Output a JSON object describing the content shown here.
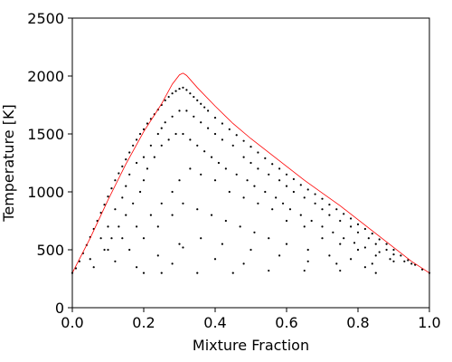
{
  "chart_data": {
    "type": "scatter",
    "xlabel": "Mixture Fraction",
    "ylabel": "Temperature [K]",
    "xlim": [
      0.0,
      1.0
    ],
    "ylim": [
      0,
      2500
    ],
    "x_ticks": [
      0.0,
      0.2,
      0.4,
      0.6,
      0.8,
      1.0
    ],
    "x_tick_labels": [
      "0.0",
      "0.2",
      "0.4",
      "0.6",
      "0.8",
      "1.0"
    ],
    "y_ticks": [
      0,
      500,
      1000,
      1500,
      2000,
      2500
    ],
    "y_tick_labels": [
      "0",
      "500",
      "1000",
      "1500",
      "2000",
      "2500"
    ],
    "grid": false,
    "series": [
      {
        "kind": "scatter",
        "color": "#000000",
        "points": [
          [
            0.0,
            300
          ],
          [
            0.01,
            340
          ],
          [
            0.02,
            400
          ],
          [
            0.03,
            470
          ],
          [
            0.04,
            540
          ],
          [
            0.05,
            610
          ],
          [
            0.06,
            680
          ],
          [
            0.07,
            750
          ],
          [
            0.08,
            820
          ],
          [
            0.09,
            890
          ],
          [
            0.1,
            960
          ],
          [
            0.11,
            1030
          ],
          [
            0.12,
            1100
          ],
          [
            0.13,
            1160
          ],
          [
            0.14,
            1220
          ],
          [
            0.15,
            1280
          ],
          [
            0.16,
            1340
          ],
          [
            0.17,
            1400
          ],
          [
            0.18,
            1450
          ],
          [
            0.19,
            1500
          ],
          [
            0.2,
            1540
          ],
          [
            0.21,
            1590
          ],
          [
            0.22,
            1630
          ],
          [
            0.23,
            1670
          ],
          [
            0.24,
            1710
          ],
          [
            0.25,
            1750
          ],
          [
            0.26,
            1790
          ],
          [
            0.27,
            1820
          ],
          [
            0.28,
            1850
          ],
          [
            0.29,
            1870
          ],
          [
            0.3,
            1890
          ],
          [
            0.31,
            1900
          ],
          [
            0.32,
            1880
          ],
          [
            0.33,
            1850
          ],
          [
            0.34,
            1820
          ],
          [
            0.35,
            1790
          ],
          [
            0.36,
            1760
          ],
          [
            0.37,
            1730
          ],
          [
            0.38,
            1700
          ],
          [
            0.4,
            1640
          ],
          [
            0.42,
            1590
          ],
          [
            0.44,
            1540
          ],
          [
            0.46,
            1490
          ],
          [
            0.48,
            1440
          ],
          [
            0.5,
            1390
          ],
          [
            0.52,
            1340
          ],
          [
            0.54,
            1290
          ],
          [
            0.56,
            1240
          ],
          [
            0.58,
            1200
          ],
          [
            0.6,
            1150
          ],
          [
            0.62,
            1110
          ],
          [
            0.64,
            1060
          ],
          [
            0.66,
            1020
          ],
          [
            0.68,
            980
          ],
          [
            0.7,
            940
          ],
          [
            0.72,
            890
          ],
          [
            0.74,
            850
          ],
          [
            0.76,
            810
          ],
          [
            0.78,
            770
          ],
          [
            0.8,
            720
          ],
          [
            0.82,
            680
          ],
          [
            0.84,
            640
          ],
          [
            0.86,
            590
          ],
          [
            0.88,
            550
          ],
          [
            0.9,
            500
          ],
          [
            0.92,
            450
          ],
          [
            0.94,
            410
          ],
          [
            0.96,
            370
          ],
          [
            0.98,
            330
          ],
          [
            1.0,
            300
          ],
          [
            0.05,
            420
          ],
          [
            0.08,
            600
          ],
          [
            0.1,
            700
          ],
          [
            0.12,
            850
          ],
          [
            0.14,
            950
          ],
          [
            0.15,
            1050
          ],
          [
            0.16,
            1150
          ],
          [
            0.18,
            1250
          ],
          [
            0.2,
            1300
          ],
          [
            0.22,
            1400
          ],
          [
            0.24,
            1500
          ],
          [
            0.25,
            1550
          ],
          [
            0.26,
            1600
          ],
          [
            0.28,
            1650
          ],
          [
            0.3,
            1700
          ],
          [
            0.32,
            1700
          ],
          [
            0.34,
            1650
          ],
          [
            0.36,
            1600
          ],
          [
            0.38,
            1550
          ],
          [
            0.4,
            1500
          ],
          [
            0.42,
            1450
          ],
          [
            0.45,
            1400
          ],
          [
            0.48,
            1300
          ],
          [
            0.5,
            1250
          ],
          [
            0.52,
            1200
          ],
          [
            0.55,
            1150
          ],
          [
            0.58,
            1100
          ],
          [
            0.6,
            1050
          ],
          [
            0.62,
            1000
          ],
          [
            0.65,
            950
          ],
          [
            0.68,
            900
          ],
          [
            0.7,
            850
          ],
          [
            0.72,
            800
          ],
          [
            0.75,
            750
          ],
          [
            0.78,
            700
          ],
          [
            0.8,
            650
          ],
          [
            0.83,
            600
          ],
          [
            0.85,
            550
          ],
          [
            0.88,
            500
          ],
          [
            0.9,
            460
          ],
          [
            0.93,
            400
          ],
          [
            0.95,
            380
          ],
          [
            0.06,
            350
          ],
          [
            0.09,
            500
          ],
          [
            0.11,
            600
          ],
          [
            0.13,
            700
          ],
          [
            0.15,
            800
          ],
          [
            0.17,
            900
          ],
          [
            0.19,
            1000
          ],
          [
            0.2,
            1100
          ],
          [
            0.21,
            1200
          ],
          [
            0.23,
            1300
          ],
          [
            0.25,
            1400
          ],
          [
            0.27,
            1450
          ],
          [
            0.29,
            1500
          ],
          [
            0.31,
            1500
          ],
          [
            0.33,
            1450
          ],
          [
            0.35,
            1400
          ],
          [
            0.37,
            1350
          ],
          [
            0.39,
            1300
          ],
          [
            0.41,
            1250
          ],
          [
            0.43,
            1200
          ],
          [
            0.46,
            1150
          ],
          [
            0.49,
            1100
          ],
          [
            0.51,
            1050
          ],
          [
            0.54,
            1000
          ],
          [
            0.57,
            950
          ],
          [
            0.59,
            900
          ],
          [
            0.61,
            850
          ],
          [
            0.64,
            800
          ],
          [
            0.67,
            750
          ],
          [
            0.7,
            700
          ],
          [
            0.73,
            650
          ],
          [
            0.76,
            600
          ],
          [
            0.79,
            560
          ],
          [
            0.82,
            520
          ],
          [
            0.86,
            480
          ],
          [
            0.89,
            420
          ],
          [
            0.1,
            500
          ],
          [
            0.14,
            600
          ],
          [
            0.18,
            700
          ],
          [
            0.22,
            800
          ],
          [
            0.25,
            900
          ],
          [
            0.28,
            1000
          ],
          [
            0.3,
            1100
          ],
          [
            0.33,
            1200
          ],
          [
            0.36,
            1150
          ],
          [
            0.4,
            1100
          ],
          [
            0.44,
            1000
          ],
          [
            0.48,
            950
          ],
          [
            0.52,
            900
          ],
          [
            0.56,
            850
          ],
          [
            0.6,
            750
          ],
          [
            0.65,
            700
          ],
          [
            0.7,
            600
          ],
          [
            0.75,
            550
          ],
          [
            0.8,
            500
          ],
          [
            0.85,
            450
          ],
          [
            0.9,
            400
          ],
          [
            0.12,
            400
          ],
          [
            0.16,
            500
          ],
          [
            0.2,
            600
          ],
          [
            0.24,
            700
          ],
          [
            0.28,
            800
          ],
          [
            0.31,
            900
          ],
          [
            0.35,
            850
          ],
          [
            0.39,
            800
          ],
          [
            0.43,
            750
          ],
          [
            0.47,
            700
          ],
          [
            0.51,
            650
          ],
          [
            0.55,
            600
          ],
          [
            0.6,
            550
          ],
          [
            0.66,
            500
          ],
          [
            0.72,
            450
          ],
          [
            0.78,
            420
          ],
          [
            0.84,
            380
          ],
          [
            0.18,
            350
          ],
          [
            0.24,
            450
          ],
          [
            0.3,
            550
          ],
          [
            0.36,
            600
          ],
          [
            0.42,
            550
          ],
          [
            0.5,
            500
          ],
          [
            0.58,
            450
          ],
          [
            0.66,
            400
          ],
          [
            0.74,
            380
          ],
          [
            0.82,
            350
          ],
          [
            0.2,
            300
          ],
          [
            0.25,
            300
          ],
          [
            0.35,
            300
          ],
          [
            0.45,
            300
          ],
          [
            0.55,
            320
          ],
          [
            0.65,
            320
          ],
          [
            0.75,
            320
          ],
          [
            0.85,
            300
          ],
          [
            0.31,
            520
          ],
          [
            0.4,
            420
          ],
          [
            0.48,
            380
          ],
          [
            0.28,
            380
          ]
        ]
      },
      {
        "kind": "line",
        "color": "#ff0000",
        "points": [
          [
            0.0,
            300
          ],
          [
            0.05,
            600
          ],
          [
            0.1,
            930
          ],
          [
            0.15,
            1240
          ],
          [
            0.2,
            1520
          ],
          [
            0.25,
            1760
          ],
          [
            0.28,
            1930
          ],
          [
            0.3,
            2010
          ],
          [
            0.31,
            2025
          ],
          [
            0.32,
            2005
          ],
          [
            0.35,
            1900
          ],
          [
            0.4,
            1740
          ],
          [
            0.45,
            1590
          ],
          [
            0.5,
            1460
          ],
          [
            0.55,
            1340
          ],
          [
            0.6,
            1220
          ],
          [
            0.65,
            1100
          ],
          [
            0.7,
            990
          ],
          [
            0.75,
            880
          ],
          [
            0.8,
            760
          ],
          [
            0.85,
            640
          ],
          [
            0.9,
            520
          ],
          [
            0.95,
            400
          ],
          [
            1.0,
            300
          ]
        ]
      }
    ]
  }
}
